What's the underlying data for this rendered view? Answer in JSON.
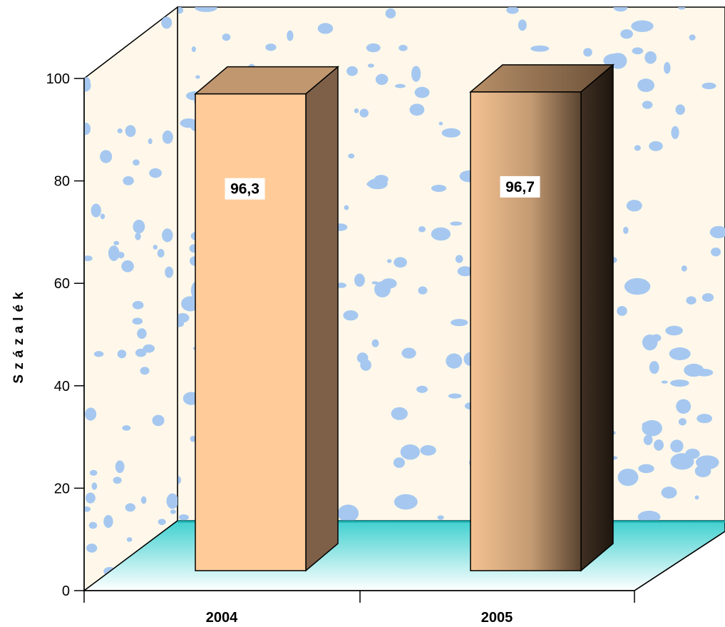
{
  "chart_data": {
    "type": "bar",
    "categories": [
      "2004",
      "2005"
    ],
    "values": [
      96.3,
      96.7
    ],
    "value_labels": [
      "96,3",
      "96,7"
    ],
    "ylabel": "Százalék",
    "ylim": [
      0,
      100
    ],
    "yticks": [
      "0",
      "20",
      "40",
      "60",
      "80",
      "100"
    ],
    "grid": false,
    "bar_colors": [
      "#ffcc99",
      "#c89a6e"
    ],
    "floor_color": "#40d0d0",
    "wall_color": "#fff8ea",
    "wall_pattern_color": "#a6c8f0"
  }
}
